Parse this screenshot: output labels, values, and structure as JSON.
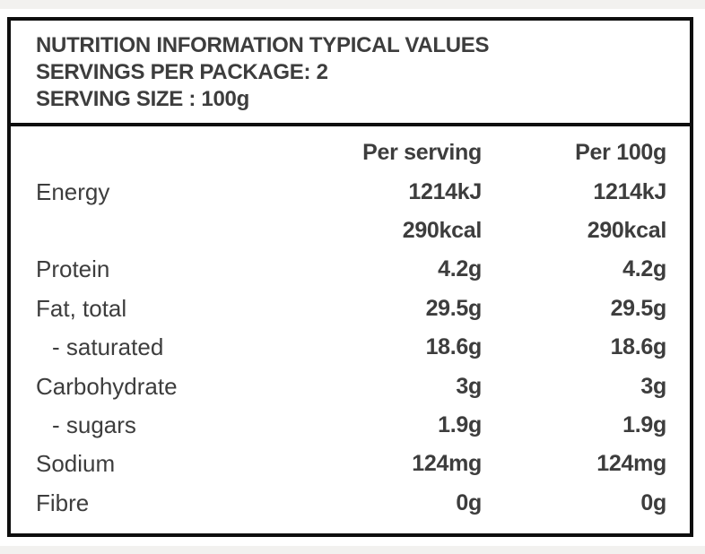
{
  "header": {
    "title": "NUTRITION INFORMATION TYPICAL VALUES",
    "servings_per_package": "SERVINGS PER PACKAGE: 2",
    "serving_size": "SERVING SIZE : 100g"
  },
  "table": {
    "columns": {
      "per_serving": "Per serving",
      "per_100g": "Per 100g"
    },
    "rows": [
      {
        "label": "Energy",
        "per_serving": "1214kJ",
        "per_100g": "1214kJ"
      },
      {
        "label": "",
        "per_serving": "290kcal",
        "per_100g": "290kcal"
      },
      {
        "label": "Protein",
        "per_serving": "4.2g",
        "per_100g": "4.2g"
      },
      {
        "label": "Fat, total",
        "per_serving": "29.5g",
        "per_100g": "29.5g"
      },
      {
        "label": "- saturated",
        "per_serving": "18.6g",
        "per_100g": "18.6g"
      },
      {
        "label": "Carbohydrate",
        "per_serving": "3g",
        "per_100g": "3g"
      },
      {
        "label": "- sugars",
        "per_serving": "1.9g",
        "per_100g": "1.9g"
      },
      {
        "label": "Sodium",
        "per_serving": "124mg",
        "per_100g": "124mg"
      },
      {
        "label": "Fibre",
        "per_serving": "0g",
        "per_100g": "0g"
      }
    ]
  },
  "colors": {
    "text": "#3d3d3d",
    "border": "#0e0e0e",
    "page_bg": "#ffffff",
    "strip_bg": "#f2f1ef"
  }
}
